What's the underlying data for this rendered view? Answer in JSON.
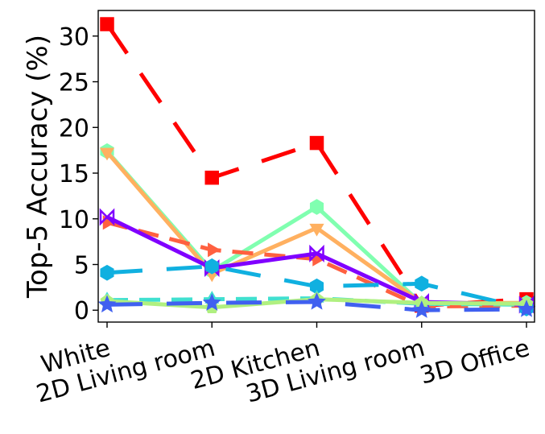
{
  "chart_data": {
    "type": "line",
    "title": "",
    "xlabel": "",
    "ylabel": "Top-5 Accuracy (%)",
    "categories": [
      "White",
      "2D Living room",
      "2D Kitchen",
      "3D Living room",
      "3D Office"
    ],
    "ylim": [
      -1.3,
      32.8
    ],
    "yticks": [
      0,
      5,
      10,
      15,
      20,
      25,
      30
    ],
    "grid": false,
    "legend": "none",
    "series": [
      {
        "color": "#ff0000",
        "dash": "long",
        "marker": "square",
        "values": [
          31.3,
          14.5,
          18.3,
          0.5,
          1.2
        ]
      },
      {
        "color": "#80ffb0",
        "dash": "solid",
        "marker": "hexagon",
        "values": [
          17.4,
          4.3,
          11.3,
          0.7,
          0.8
        ]
      },
      {
        "color": "#ffb060",
        "dash": "solid",
        "marker": "triangle-down",
        "values": [
          17.3,
          4.0,
          9.0,
          0.8,
          0.8
        ]
      },
      {
        "color": "#ff6040",
        "dash": "dashed",
        "marker": "triangle-right",
        "values": [
          9.6,
          6.6,
          5.6,
          0.4,
          0.5
        ]
      },
      {
        "color": "#8000ff",
        "dash": "solid",
        "marker": "bowtie",
        "values": [
          10.2,
          4.6,
          6.2,
          0.9,
          0.6
        ]
      },
      {
        "color": "#10b0e0",
        "dash": "long",
        "marker": "hexagon",
        "values": [
          4.1,
          4.8,
          2.6,
          2.9,
          0.2
        ]
      },
      {
        "color": "#40e0d0",
        "dash": "dashed",
        "marker": "triangle-up",
        "values": [
          1.1,
          1.2,
          1.3,
          0.7,
          0.6
        ]
      },
      {
        "color": "#b0f080",
        "dash": "solid",
        "marker": "pentagon",
        "values": [
          1.0,
          0.3,
          1.2,
          0.8,
          0.7
        ]
      },
      {
        "color": "#4060f0",
        "dash": "long",
        "marker": "star",
        "values": [
          0.6,
          0.8,
          0.9,
          0.0,
          0.1
        ]
      }
    ]
  }
}
